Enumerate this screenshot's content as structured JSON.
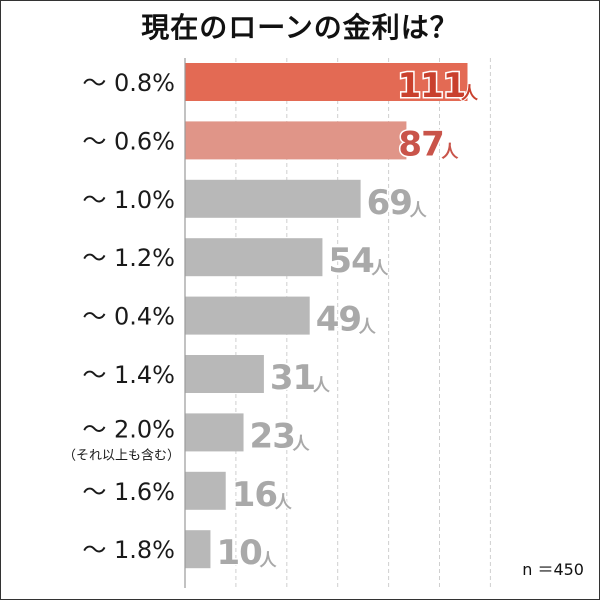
{
  "chart_data": {
    "type": "bar",
    "orientation": "horizontal",
    "title": "現在のローンの金利は？",
    "categories": [
      "～ 0.8%",
      "～ 0.6%",
      "～ 1.0%",
      "～ 1.2%",
      "～ 0.4%",
      "～ 1.4%",
      "～ 2.0%",
      "～ 1.6%",
      "～ 1.8%"
    ],
    "category_notes": [
      "",
      "",
      "",
      "",
      "",
      "",
      "（それ以上も含む）",
      "",
      ""
    ],
    "values": [
      111,
      87,
      69,
      54,
      49,
      31,
      23,
      16,
      10
    ],
    "value_unit": "人",
    "xlim": [
      0,
      120
    ],
    "grid": true,
    "colors": {
      "rank1": "#e36a54",
      "rank2": "#e09588",
      "other": "#b8b8b8",
      "rank1_text": "#c9402d",
      "rank2_text": "#c9544a",
      "other_text": "#a9a9a9"
    }
  },
  "footnote": "n ＝450"
}
